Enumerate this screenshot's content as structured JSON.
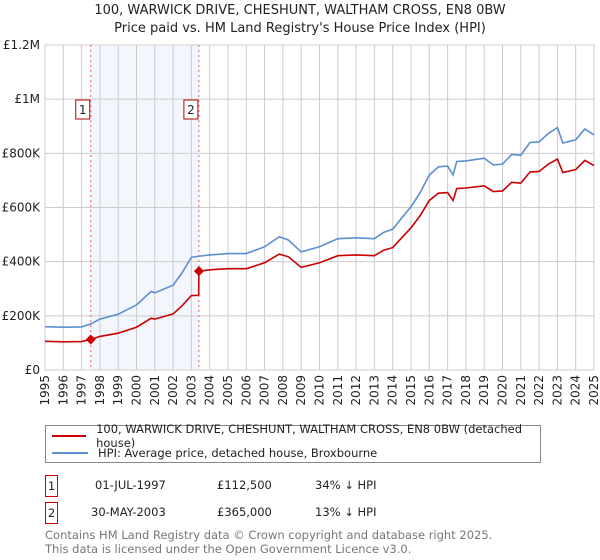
{
  "chart_data": {
    "type": "line",
    "title": "100, WARWICK DRIVE, CHESHUNT, WALTHAM CROSS, EN8 0BW",
    "subtitle": "Price paid vs. HM Land Registry's House Price Index (HPI)",
    "xlim": [
      1995,
      2025
    ],
    "ylim": [
      0,
      1200000
    ],
    "x_ticks": [
      "1995",
      "1996",
      "1997",
      "1998",
      "1999",
      "2000",
      "2001",
      "2002",
      "2003",
      "2004",
      "2005",
      "2006",
      "2007",
      "2008",
      "2009",
      "2010",
      "2011",
      "2012",
      "2013",
      "2014",
      "2015",
      "2016",
      "2017",
      "2018",
      "2019",
      "2020",
      "2021",
      "2022",
      "2023",
      "2024",
      "2025"
    ],
    "y_ticks": [
      {
        "v": 0,
        "label": "£0"
      },
      {
        "v": 200000,
        "label": "£200K"
      },
      {
        "v": 400000,
        "label": "£400K"
      },
      {
        "v": 600000,
        "label": "£600K"
      },
      {
        "v": 800000,
        "label": "£800K"
      },
      {
        "v": 1000000,
        "label": "£1M"
      },
      {
        "v": 1200000,
        "label": "£1.2M"
      }
    ],
    "grid": true,
    "series": [
      {
        "name": "100, WARWICK DRIVE, CHESHUNT, WALTHAM CROSS, EN8 0BW (detached house)",
        "color": "#cc0000",
        "x": [
          1995,
          1996,
          1997,
          1997.5,
          1998,
          1999,
          2000,
          2000.8,
          2001,
          2002,
          2002.5,
          2003,
          2003.4,
          2003.41,
          2004,
          2005,
          2006,
          2007,
          2007.8,
          2008.3,
          2009,
          2010,
          2011,
          2012,
          2013,
          2013.5,
          2014,
          2015,
          2015.5,
          2016,
          2016.5,
          2017,
          2017.3,
          2017.5,
          2018,
          2019,
          2019.5,
          2020,
          2020.5,
          2021,
          2021.5,
          2022,
          2022.5,
          2023,
          2023.3,
          2024,
          2024.5,
          2025
        ],
        "y": [
          106,
          104,
          105,
          112.5,
          124,
          136,
          158,
          191,
          188,
          207,
          238,
          275,
          276,
          365,
          370,
          374,
          374,
          396,
          428,
          418,
          379,
          396,
          422,
          425,
          422,
          442,
          452,
          525,
          570,
          626,
          653,
          655,
          626,
          670,
          672,
          680,
          659,
          661,
          693,
          690,
          731,
          733,
          760,
          779,
          729,
          740,
          774,
          755
        ]
      },
      {
        "name": "HPI: Average price, detached house, Broxbourne",
        "color": "#5b8fd0",
        "x": [
          1995,
          1996,
          1997,
          1997.5,
          1998,
          1999,
          2000,
          2000.8,
          2001,
          2002,
          2002.5,
          2003,
          2003.4,
          2004,
          2005,
          2006,
          2007,
          2007.8,
          2008.3,
          2009,
          2010,
          2011,
          2012,
          2013,
          2013.5,
          2014,
          2015,
          2015.5,
          2016,
          2016.5,
          2017,
          2017.3,
          2017.5,
          2018,
          2019,
          2019.5,
          2020,
          2020.5,
          2021,
          2021.5,
          2022,
          2022.5,
          2023,
          2023.3,
          2024,
          2024.5,
          2025
        ],
        "y": [
          160,
          158,
          159,
          170,
          188,
          206,
          240,
          290,
          285,
          313,
          360,
          416,
          420,
          425,
          430,
          430,
          455,
          492,
          480,
          436,
          455,
          485,
          488,
          485,
          508,
          520,
          603,
          655,
          720,
          750,
          753,
          720,
          770,
          772,
          782,
          757,
          760,
          796,
          793,
          840,
          842,
          873,
          895,
          838,
          850,
          890,
          868
        ]
      }
    ],
    "y_units": "thousands GBP",
    "sales": [
      {
        "id": "1",
        "x": 1997.5,
        "y": 112.5
      },
      {
        "id": "2",
        "x": 2003.41,
        "y": 365
      }
    ],
    "shaded_range": [
      1997.5,
      2003.41
    ]
  },
  "legend": {
    "property": "100, WARWICK DRIVE, CHESHUNT, WALTHAM CROSS, EN8 0BW (detached house)",
    "hpi": "HPI: Average price, detached house, Broxbourne"
  },
  "transactions": [
    {
      "id": "1",
      "date": "01-JUL-1997",
      "price": "£112,500",
      "hpi": "34% ↓ HPI"
    },
    {
      "id": "2",
      "date": "30-MAY-2003",
      "price": "£365,000",
      "hpi": "13% ↓ HPI"
    }
  ],
  "footer": {
    "line1": "Contains HM Land Registry data © Crown copyright and database right 2025.",
    "line2": "This data is licensed under the Open Government Licence v3.0."
  }
}
